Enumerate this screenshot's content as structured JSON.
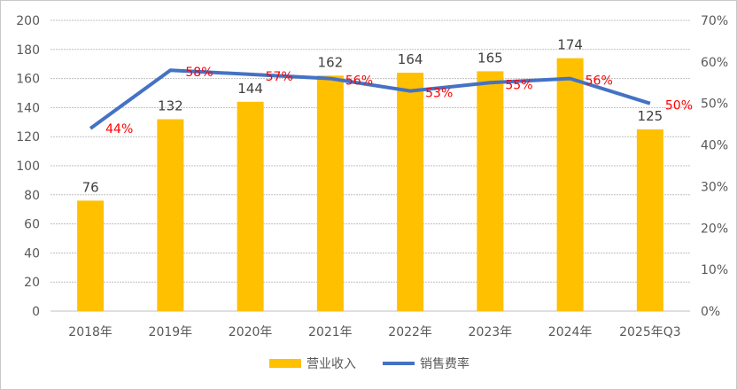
{
  "chart_data": {
    "type": "bar+line",
    "categories": [
      "2018年",
      "2019年",
      "2020年",
      "2021年",
      "2022年",
      "2023年",
      "2024年",
      "2025年Q3"
    ],
    "series": [
      {
        "name": "营业收入",
        "type": "bar",
        "axis": "left",
        "values": [
          76,
          132,
          144,
          162,
          164,
          165,
          174,
          125
        ],
        "color": "#FFC000",
        "labels": [
          "76",
          "132",
          "144",
          "162",
          "164",
          "165",
          "174",
          "125"
        ]
      },
      {
        "name": "销售费率",
        "type": "line",
        "axis": "right",
        "values": [
          44,
          58,
          57,
          56,
          53,
          55,
          56,
          50
        ],
        "color": "#4472C4",
        "labels": [
          "44%",
          "58%",
          "57%",
          "56%",
          "53%",
          "55%",
          "56%",
          "50%"
        ],
        "label_color": "#FF0000"
      }
    ],
    "ylim": [
      0,
      200
    ],
    "yticks": [
      "0",
      "20",
      "40",
      "60",
      "80",
      "100",
      "120",
      "140",
      "160",
      "180",
      "200"
    ],
    "y2lim": [
      0,
      70
    ],
    "y2ticks": [
      "0%",
      "10%",
      "20%",
      "30%",
      "40%",
      "50%",
      "60%",
      "70%"
    ],
    "grid": true,
    "legend": "bottom"
  }
}
